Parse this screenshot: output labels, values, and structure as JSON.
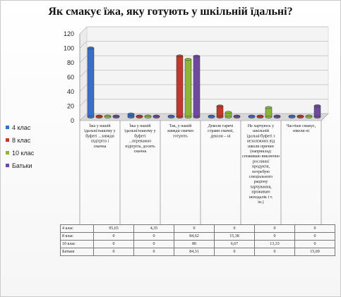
{
  "chart_data": {
    "type": "bar",
    "title": "Як смакує їжа, яку готують у шкільній їдальні?",
    "categories": [
      "Їжа у нашій їдальні/нашому у буфеті ...завжди підігріта і смачна",
      "Їжа у нашій їдальні/нашому у буфеті ...переважно підігріта, досить смачна",
      "Так, у нашій завжди смачно готують",
      "Деколи гарячі страви смачні, деколи – ні",
      "Не харчуюсь у шкільній їдальні/буфеті з незалежних від школи причин (наприклад: споживаю виключно рослинні продукти, потребую спеціального раціону харчування, проживаю неподалік і т. ін.)",
      "Частіше смакує, ніколи ні"
    ],
    "series": [
      {
        "name": "4 клас",
        "color": "#3a6fc8",
        "values": [
          95.65,
          4.35,
          0,
          0,
          0,
          0
        ],
        "labels": [
          "95,65",
          "4,35",
          "0",
          "0",
          "0",
          "0"
        ]
      },
      {
        "name": "8 клас",
        "color": "#c0392b",
        "values": [
          0,
          0,
          84.62,
          15.38,
          0,
          0
        ],
        "labels": [
          "0",
          "0",
          "84,62",
          "15,38",
          "0",
          "0"
        ]
      },
      {
        "name": "10 клас",
        "color": "#8bb63a",
        "values": [
          0,
          0,
          80,
          6.67,
          13.33,
          0
        ],
        "labels": [
          "0",
          "0",
          "80",
          "6,67",
          "13,33",
          "0"
        ]
      },
      {
        "name": "Батьки",
        "color": "#6f4a9c",
        "values": [
          0,
          0,
          84.31,
          0,
          0,
          15.69
        ],
        "labels": [
          "0",
          "0",
          "84,31",
          "0",
          "0",
          "15,69"
        ]
      }
    ],
    "ylim": [
      0,
      120
    ],
    "yticks": [
      "0",
      "20",
      "40",
      "60",
      "80",
      "100",
      "120"
    ],
    "legend_position": "left",
    "grid": true
  }
}
